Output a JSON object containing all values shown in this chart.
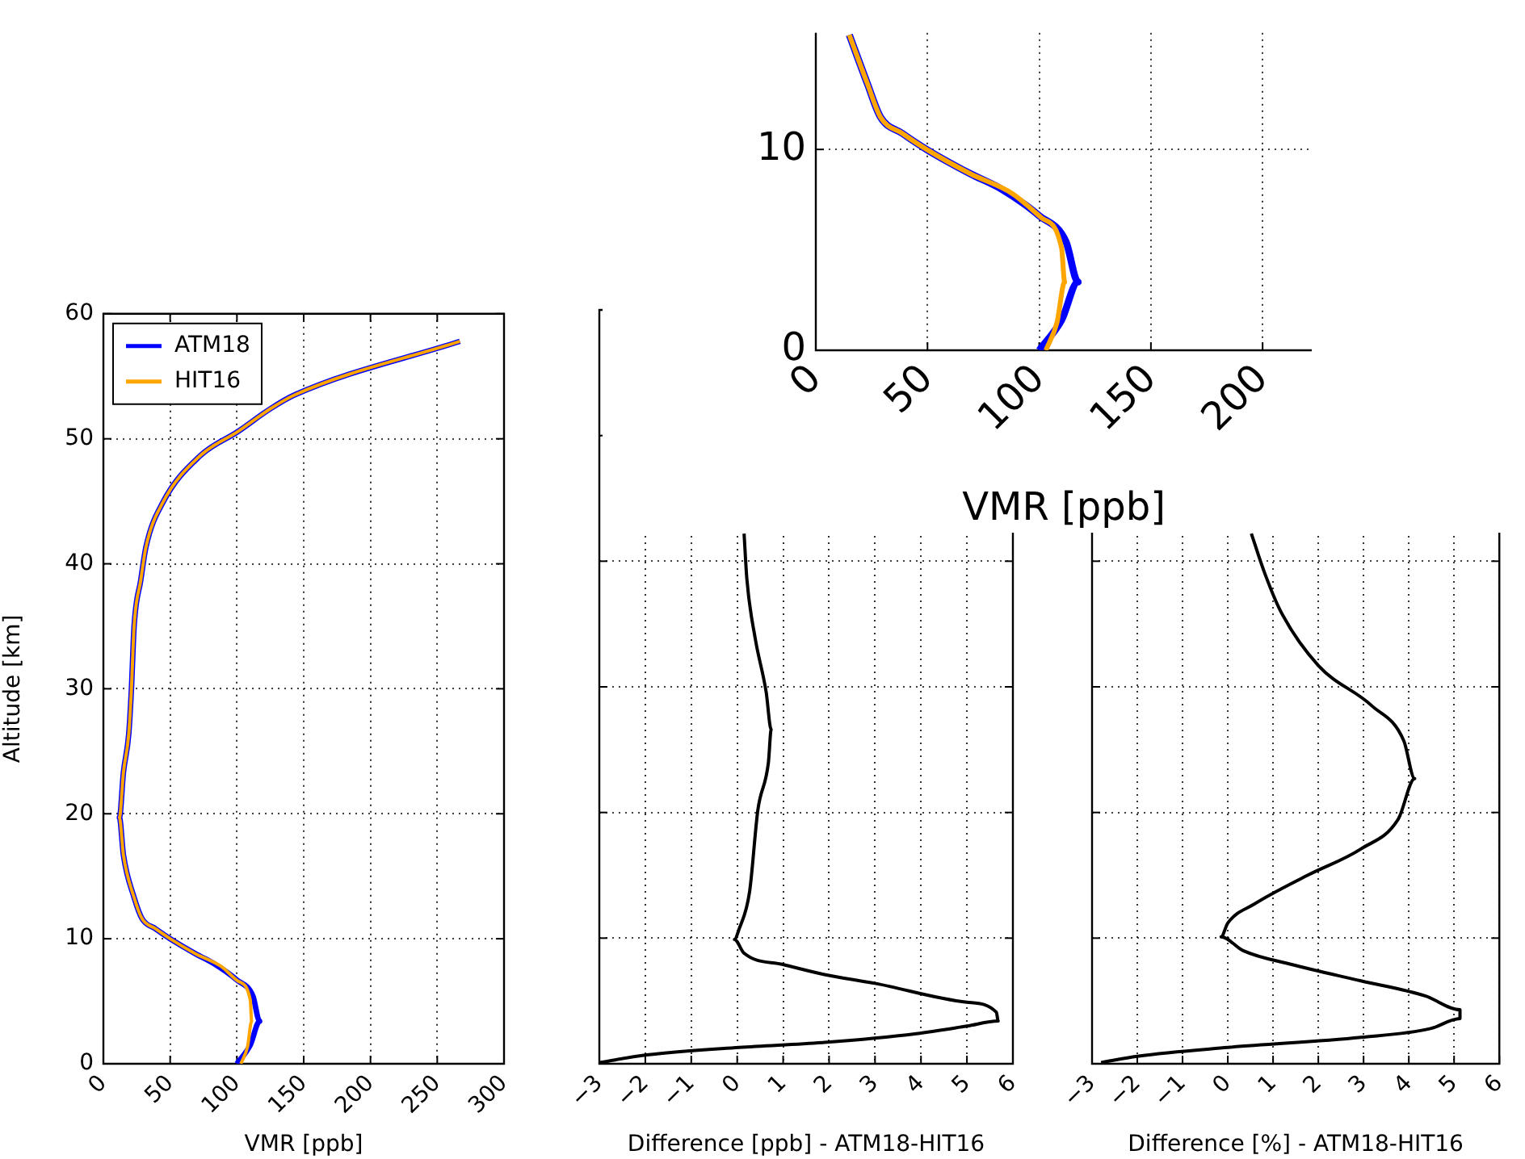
{
  "chart_data": [
    {
      "type": "line",
      "xlabel": "VMR [ppb]",
      "ylabel": "Altitude [km]",
      "xlim": [
        0,
        300
      ],
      "xticks": [
        0,
        50,
        100,
        150,
        200,
        250,
        300
      ],
      "ylim": [
        0,
        60
      ],
      "yticks": [
        0,
        10,
        20,
        30,
        40,
        50,
        60
      ],
      "grid": true,
      "legend": "top left",
      "series": [
        {
          "name": "ATM18",
          "color": "#0000ff",
          "x": [
            100,
            110,
            117,
            112,
            100,
            83,
            69,
            50,
            39,
            29,
            23,
            15,
            12,
            15,
            19,
            21,
            23,
            28,
            32,
            44.5,
            72,
            101,
            125,
            143,
            267
          ],
          "values": [
            0,
            1.5,
            3.4,
            5.4,
            6.7,
            8,
            8.8,
            10,
            10.8,
            11.6,
            13.3,
            16.7,
            19.7,
            23.3,
            26.4,
            30,
            35,
            38.7,
            41.4,
            44.9,
            48.6,
            50.6,
            52.4,
            53.5,
            57.8
          ]
        },
        {
          "name": "HIT16",
          "color": "#ffa500",
          "x": [
            103,
            108,
            111,
            110,
            101,
            88,
            69,
            50,
            39,
            29,
            23,
            15,
            12,
            15,
            19,
            21,
            23,
            28,
            32,
            44.5,
            72,
            101,
            125,
            143,
            267
          ],
          "values": [
            0,
            1.4,
            3.4,
            5.1,
            6.6,
            7.8,
            8.8,
            10,
            10.8,
            11.6,
            13.3,
            16.7,
            19.7,
            23.3,
            26.4,
            30,
            35,
            38.7,
            41.4,
            44.9,
            48.6,
            50.6,
            52.4,
            53.5,
            57.8
          ]
        }
      ]
    },
    {
      "type": "line",
      "xlabel": "Difference [ppb] - ATM18-HIT16",
      "xlim": [
        -3,
        6
      ],
      "xticks": [
        -3,
        -2,
        -1,
        0,
        1,
        2,
        3,
        4,
        5,
        6
      ],
      "ylim": [
        0,
        60
      ],
      "yticks": [
        0,
        10,
        20,
        30,
        40,
        50,
        60
      ],
      "tick_labels": "x",
      "grid": true,
      "series": [
        {
          "color": "#000000",
          "x": [
            -3,
            -1.97,
            0.04,
            1.9,
            3.9,
            5,
            5.68,
            5.64,
            5,
            3,
            1.9,
            1,
            0.15,
            -0.06,
            0.04,
            0.27,
            0.45,
            0.68,
            0.74,
            0.63,
            0.39,
            0.21,
            0.15
          ],
          "values": [
            0.1,
            0.7,
            1.3,
            1.7,
            2.4,
            3,
            3.4,
            4.1,
            4.9,
            6.4,
            7.1,
            7.9,
            8.8,
            9.9,
            10.7,
            13.7,
            20.2,
            24,
            26.6,
            29.6,
            33.9,
            38.6,
            42.2
          ]
        }
      ]
    },
    {
      "type": "line",
      "xlabel": "Difference [%] - ATM18-HIT16",
      "xlim": [
        -3,
        6
      ],
      "xticks": [
        -3,
        -2,
        -1,
        0,
        1,
        2,
        3,
        4,
        5,
        6
      ],
      "ylim": [
        0,
        60
      ],
      "yticks": [
        0,
        10,
        20,
        30,
        40,
        50,
        60
      ],
      "tick_labels": "x",
      "grid": true,
      "series": [
        {
          "color": "#000000",
          "x": [
            -2.8,
            -2,
            0,
            2.94,
            4.48,
            5.13,
            5.13,
            4.36,
            2.94,
            1.41,
            0.34,
            -0.15,
            0,
            0.58,
            1.76,
            2.94,
            3.77,
            4.13,
            3.89,
            3.18,
            2,
            1.17,
            0.82,
            0.52
          ],
          "values": [
            0.1,
            0.6,
            1.3,
            2.1,
            2.8,
            3.6,
            4.3,
            5.4,
            6.6,
            7.9,
            9,
            10.1,
            11.2,
            12.7,
            15,
            17.1,
            19.5,
            22.7,
            25.7,
            28.5,
            31.7,
            36,
            39,
            42.2
          ]
        }
      ]
    },
    {
      "type": "line",
      "xlabel": "VMR [ppb]",
      "xlim": [
        0,
        222
      ],
      "xticks": [
        0,
        50,
        100,
        150,
        200
      ],
      "ylim": [
        0,
        15.8
      ],
      "yticks": [
        0,
        10
      ],
      "grid": true,
      "series": [
        {
          "color": "#0000ff",
          "x": [
            100,
            110,
            117.4,
            112,
            100,
            83.5,
            69,
            49.6,
            38.7,
            29,
            23,
            15
          ],
          "values": [
            0,
            1.5,
            3.4,
            5.4,
            6.7,
            8,
            8.8,
            10,
            10.8,
            11.6,
            13.3,
            15.7
          ]
        },
        {
          "color": "#ffa500",
          "x": [
            103,
            108,
            111.4,
            110,
            101,
            88,
            69,
            49.6,
            38.7,
            29,
            23,
            15
          ],
          "values": [
            0,
            1.4,
            3.4,
            5.1,
            6.6,
            7.8,
            8.8,
            10,
            10.8,
            11.6,
            13.3,
            15.7
          ]
        }
      ]
    }
  ]
}
